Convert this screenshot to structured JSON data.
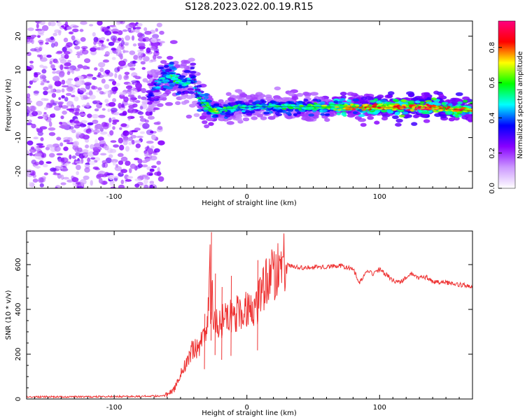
{
  "title": "S128.2023.022.00.19.R15",
  "chart_data": [
    {
      "type": "heatmap",
      "title": "S128.2023.022.00.19.R15",
      "xlabel": "Height of straight line (km)",
      "ylabel": "Frequency (Hz)",
      "xlim": [
        -166,
        170
      ],
      "ylim": [
        -25,
        24.5
      ],
      "xticks": [
        -100,
        0,
        100
      ],
      "yticks": [
        -20,
        -10,
        0,
        10,
        20
      ],
      "colorbar": {
        "label": "Normalized spectral amplitude",
        "range": [
          0.0,
          0.95
        ],
        "ticks": [
          0.0,
          0.2,
          0.4,
          0.6,
          0.8
        ],
        "tick_labels": [
          "0.0",
          "0.2",
          "0.4",
          "0.6",
          "0.8"
        ],
        "colors": [
          "#ffffff",
          "#cc99ff",
          "#8800ff",
          "#0000ff",
          "#00ffff",
          "#00ff00",
          "#ffff00",
          "#ff0000",
          "#ff0080"
        ]
      },
      "noise_region_x": [
        -166,
        -70
      ],
      "ridge": {
        "x": [
          -74,
          -68,
          -62,
          -56,
          -50,
          -44,
          -40,
          -38,
          -35,
          -30,
          -25,
          -15,
          0,
          20,
          50,
          80,
          110,
          140,
          150,
          160,
          170
        ],
        "y": [
          2,
          5,
          7.5,
          8,
          6,
          6,
          8,
          3,
          1,
          -1,
          -2,
          -1.5,
          -1,
          -0.8,
          -0.9,
          -1,
          -1,
          -1,
          -1.5,
          -1.8,
          -2
        ],
        "amplitude": [
          0.35,
          0.45,
          0.55,
          0.6,
          0.5,
          0.5,
          0.4,
          0.45,
          0.55,
          0.6,
          0.7,
          0.55,
          0.5,
          0.55,
          0.6,
          0.75,
          0.85,
          0.9,
          0.8,
          0.85,
          0.8
        ]
      }
    },
    {
      "type": "line",
      "xlabel": "Height of straight line (km)",
      "ylabel": "SNR (10 * v/v)",
      "xlim": [
        -166,
        170
      ],
      "ylim": [
        0,
        750
      ],
      "xticks": [
        -100,
        0,
        100
      ],
      "yticks": [
        0,
        200,
        400,
        600
      ],
      "color": "#ee3333",
      "series": [
        {
          "name": "SNR",
          "x": [
            -166,
            -120,
            -80,
            -60,
            -55,
            -50,
            -45,
            -40,
            -35,
            -30,
            -27,
            -25,
            -20,
            -15,
            -10,
            -5,
            0,
            5,
            8,
            10,
            15,
            20,
            25,
            28,
            30,
            35,
            40,
            50,
            60,
            70,
            80,
            85,
            90,
            95,
            100,
            105,
            110,
            115,
            120,
            125,
            130,
            135,
            140,
            145,
            150,
            160,
            170
          ],
          "y": [
            10,
            10,
            12,
            15,
            40,
            110,
            170,
            230,
            240,
            300,
            745,
            320,
            340,
            360,
            380,
            390,
            400,
            420,
            430,
            480,
            520,
            560,
            600,
            610,
            600,
            590,
            585,
            590,
            590,
            595,
            580,
            520,
            570,
            560,
            580,
            555,
            530,
            520,
            540,
            560,
            540,
            545,
            525,
            520,
            520,
            510,
            505
          ],
          "spikes": [
            {
              "x": -27,
              "y": 745
            },
            {
              "x": -24,
              "y": 560
            },
            {
              "x": -12,
              "y": 550
            },
            {
              "x": 8,
              "y": 620
            },
            {
              "x": -19,
              "y": 500
            },
            {
              "x": -32,
              "y": 380
            }
          ]
        }
      ]
    }
  ]
}
